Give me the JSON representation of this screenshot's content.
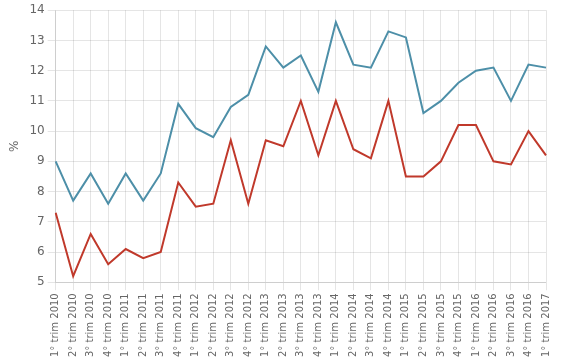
{
  "chart_data": {
    "type": "line",
    "y_label": "%",
    "categories": [
      "1° trim 2010",
      "2° trim 2010",
      "3° trim 2010",
      "4° trim 2010",
      "1° trim 2011",
      "2° trim 2011",
      "3° trim 2011",
      "4° trim 2011",
      "1° trim 2012",
      "2° trim 2012",
      "3° trim 2012",
      "4° trim 2012",
      "1° trim 2013",
      "2° trim 2013",
      "3° trim 2013",
      "4° trim 2013",
      "1° trim 2014",
      "2° trim 2014",
      "3° trim 2014",
      "4° trim 2014",
      "1° trim 2015",
      "2° trim 2015",
      "3° trim 2015",
      "4° trim 2015",
      "1° trim 2016",
      "2° trim 2016",
      "3° trim 2016",
      "4° trim 2016",
      "1° trim 2017"
    ],
    "series": [
      {
        "color": "#4d8fa8",
        "values": [
          9.0,
          7.7,
          8.6,
          7.6,
          8.6,
          7.7,
          8.6,
          10.9,
          10.1,
          9.8,
          10.8,
          11.2,
          12.8,
          12.1,
          12.5,
          11.3,
          13.6,
          12.2,
          12.1,
          13.3,
          13.1,
          10.6,
          11.0,
          11.6,
          12.0,
          12.1,
          11.0,
          12.2,
          12.1
        ]
      },
      {
        "color": "#c0392b",
        "values": [
          7.3,
          5.2,
          6.6,
          5.6,
          6.1,
          5.8,
          6.0,
          8.3,
          7.5,
          7.6,
          9.7,
          7.6,
          9.7,
          9.5,
          11.0,
          9.2,
          11.0,
          9.4,
          9.1,
          11.0,
          8.5,
          8.5,
          9.0,
          10.2,
          10.2,
          9.0,
          8.9,
          10.0,
          9.2
        ]
      }
    ],
    "ylim": [
      5,
      14
    ],
    "yticks": [
      5,
      6,
      7,
      8,
      9,
      10,
      11,
      12,
      13,
      14
    ],
    "grid": true
  }
}
